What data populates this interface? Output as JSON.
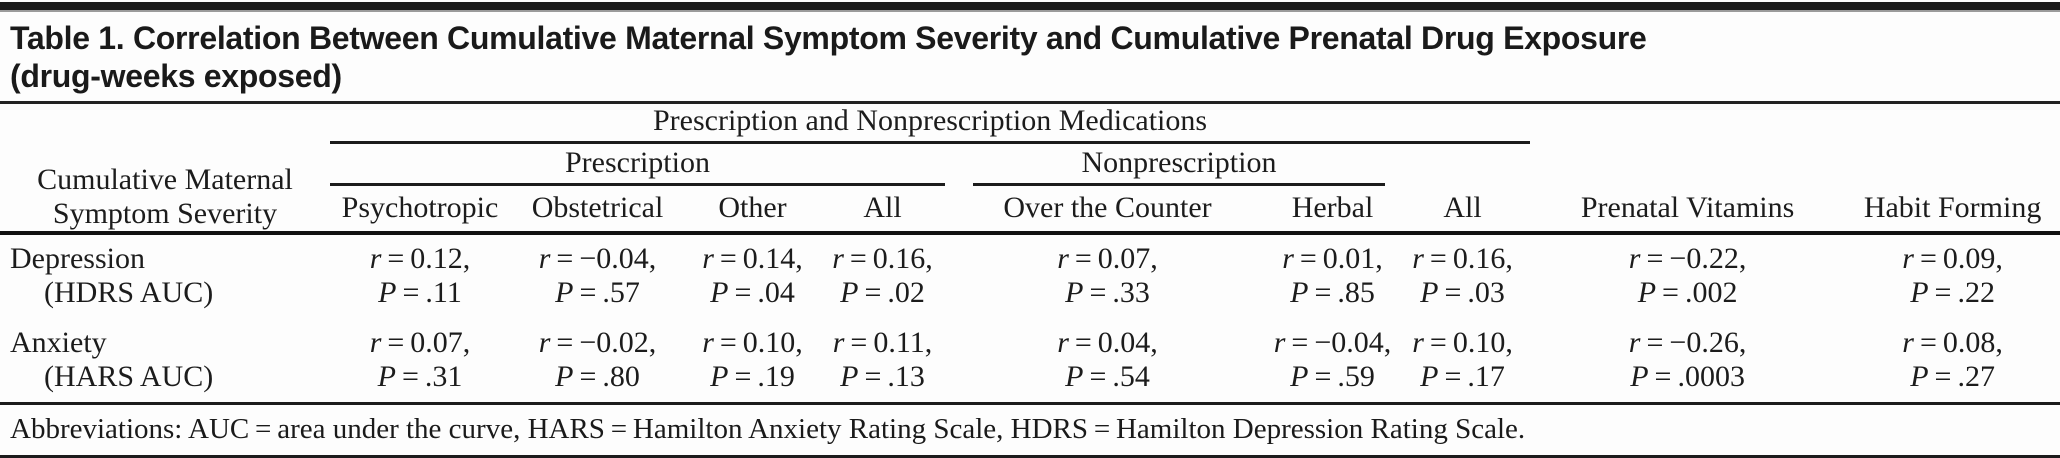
{
  "title": {
    "line1": "Table 1. Correlation Between Cumulative Maternal Symptom Severity and Cumulative Prenatal Drug Exposure",
    "line2": "(drug-weeks exposed)"
  },
  "table": {
    "stub_header": {
      "line1": "Cumulative Maternal",
      "line2": "Symptom Severity"
    },
    "group_headers": {
      "top": "Prescription and Nonprescription Medications",
      "prescription": "Prescription",
      "nonprescription": "Nonprescription"
    },
    "columns": [
      "Psychotropic",
      "Obstetrical",
      "Other",
      "All",
      "Over the Counter",
      "Herbal",
      "All",
      "Prenatal Vitamins",
      "Habit Forming"
    ],
    "cell_format": {
      "r_symbol": "r",
      "p_symbol": "P",
      "equals": "=",
      "r_suffix": ","
    },
    "rows": [
      {
        "label_line1": "Depression",
        "label_line2": "(HDRS AUC)",
        "cells": [
          {
            "r": "0.12",
            "p": ".11"
          },
          {
            "r": "−0.04",
            "p": ".57"
          },
          {
            "r": "0.14",
            "p": ".04"
          },
          {
            "r": "0.16",
            "p": ".02"
          },
          {
            "r": "0.07",
            "p": ".33"
          },
          {
            "r": "0.01",
            "p": ".85"
          },
          {
            "r": "0.16",
            "p": ".03"
          },
          {
            "r": "−0.22",
            "p": ".002"
          },
          {
            "r": "0.09",
            "p": ".22"
          }
        ]
      },
      {
        "label_line1": "Anxiety",
        "label_line2": "(HARS AUC)",
        "cells": [
          {
            "r": "0.07",
            "p": ".31"
          },
          {
            "r": "−0.02",
            "p": ".80"
          },
          {
            "r": "0.10",
            "p": ".19"
          },
          {
            "r": "0.11",
            "p": ".13"
          },
          {
            "r": "0.04",
            "p": ".54"
          },
          {
            "r": "−0.04",
            "p": ".59"
          },
          {
            "r": "0.10",
            "p": ".17"
          },
          {
            "r": "−0.26",
            "p": ".0003"
          },
          {
            "r": "0.08",
            "p": ".27"
          }
        ]
      }
    ]
  },
  "footnote": "Abbreviations: AUC = area under the curve, HARS = Hamilton Anxiety Rating Scale, HDRS = Hamilton Depression Rating Scale.",
  "chart_data": {
    "type": "table",
    "title": "Table 1. Correlation Between Cumulative Maternal Symptom Severity and Cumulative Prenatal Drug Exposure (drug-weeks exposed)",
    "column_groups": [
      {
        "label": "Prescription and Nonprescription Medications",
        "spans": [
          "Psychotropic",
          "Obstetrical",
          "Other",
          "All",
          "Over the Counter",
          "Herbal",
          "All"
        ]
      },
      {
        "label": "Prescription",
        "spans": [
          "Psychotropic",
          "Obstetrical",
          "Other",
          "All"
        ]
      },
      {
        "label": "Nonprescription",
        "spans": [
          "Over the Counter",
          "Herbal"
        ]
      }
    ],
    "columns": [
      "Cumulative Maternal Symptom Severity",
      "Psychotropic",
      "Obstetrical",
      "Other",
      "All",
      "Over the Counter",
      "Herbal",
      "All",
      "Prenatal Vitamins",
      "Habit Forming"
    ],
    "rows": [
      [
        "Depression (HDRS AUC)",
        "r = 0.12, P = .11",
        "r = −0.04, P = .57",
        "r = 0.14, P = .04",
        "r = 0.16, P = .02",
        "r = 0.07, P = .33",
        "r = 0.01, P = .85",
        "r = 0.16, P = .03",
        "r = −0.22, P = .002",
        "r = 0.09, P = .22"
      ],
      [
        "Anxiety (HARS AUC)",
        "r = 0.07, P = .31",
        "r = −0.02, P = .80",
        "r = 0.10, P = .19",
        "r = 0.11, P = .13",
        "r = 0.04, P = .54",
        "r = −0.04, P = .59",
        "r = 0.10, P = .17",
        "r = −0.26, P = .0003",
        "r = 0.08, P = .27"
      ]
    ],
    "footnote": "Abbreviations: AUC = area under the curve, HARS = Hamilton Anxiety Rating Scale, HDRS = Hamilton Depression Rating Scale."
  }
}
